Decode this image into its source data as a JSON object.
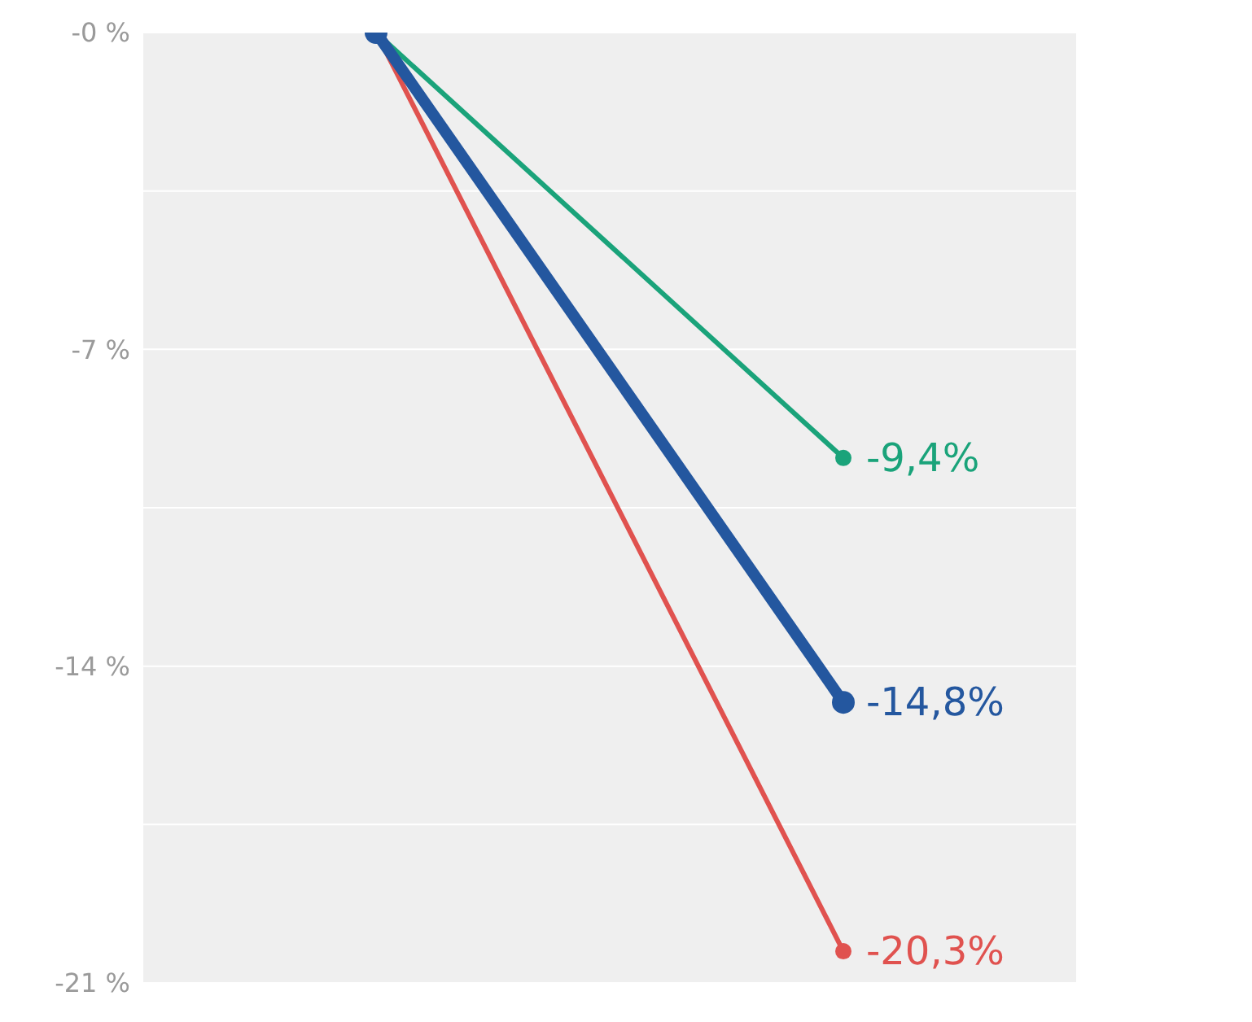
{
  "chart_data": {
    "type": "line",
    "categories": [
      null,
      null
    ],
    "series": [
      {
        "color": "#1aa37a",
        "values": [
          0,
          -9.4
        ],
        "value_labels": [
          null,
          "-9,4%"
        ]
      },
      {
        "color": "#e0524f",
        "values": [
          0,
          -20.3
        ],
        "value_labels": [
          null,
          "-20,3%"
        ]
      },
      {
        "color": "#24579f",
        "values": [
          0,
          -14.8
        ],
        "value_labels": [
          null,
          "-14,8%"
        ]
      }
    ],
    "ylim": [
      -21,
      0
    ],
    "yticks": [
      {
        "value": 0,
        "label": "-0 %"
      },
      {
        "value": -3.5,
        "label": null
      },
      {
        "value": -7,
        "label": "-7 %"
      },
      {
        "value": -10.5,
        "label": null
      },
      {
        "value": -14,
        "label": "-14 %"
      },
      {
        "value": -17.5,
        "label": null
      },
      {
        "value": -21,
        "label": "-21 %"
      }
    ],
    "grid": "y",
    "marker": "circle",
    "line_style": "solid",
    "legend": false
  }
}
